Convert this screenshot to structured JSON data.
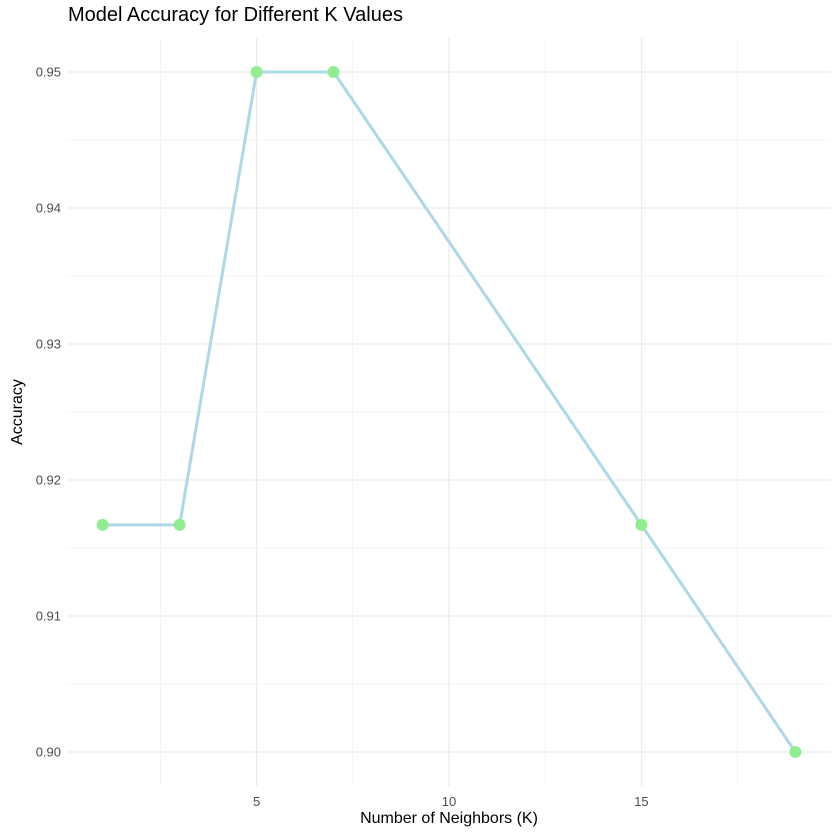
{
  "chart_data": {
    "type": "line",
    "title": "Model Accuracy for Different K Values",
    "xlabel": "Number of Neighbors (K)",
    "ylabel": "Accuracy",
    "x": [
      1,
      3,
      5,
      7,
      15,
      19
    ],
    "series": [
      {
        "values": [
          0.9167,
          0.9167,
          0.95,
          0.95,
          0.9167,
          0.9
        ]
      }
    ],
    "xlim": [
      0.1,
      19.9
    ],
    "ylim": [
      0.8975,
      0.9525
    ],
    "x_ticks": [
      5,
      10,
      15
    ],
    "x_tick_labels": [
      "5",
      "10",
      "15"
    ],
    "y_ticks": [
      0.9,
      0.91,
      0.92,
      0.93,
      0.94,
      0.95
    ],
    "y_tick_labels": [
      "0.90",
      "0.91",
      "0.92",
      "0.93",
      "0.94",
      "0.95"
    ],
    "grid": true,
    "line_color": "#ADD8E6",
    "point_color": "#90EE90",
    "grid_color": "#EBEBEB"
  }
}
